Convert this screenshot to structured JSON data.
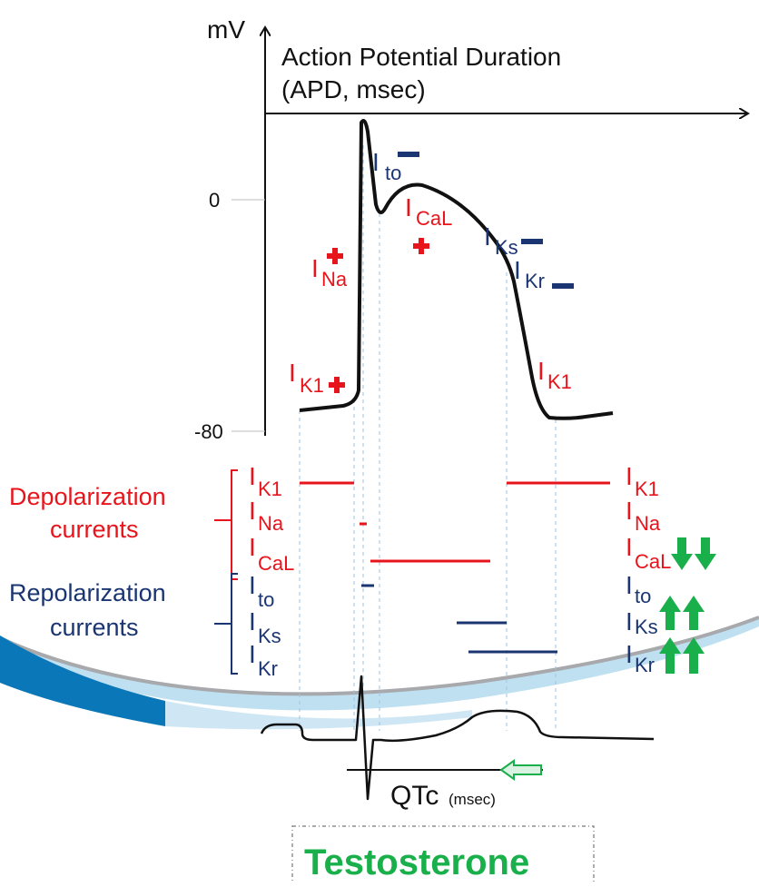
{
  "axes": {
    "y_unit": "mV",
    "x_title_line1": "Action Potential Duration",
    "x_title_line2": "(APD, msec)",
    "tick_zero": "0",
    "tick_minus80": "-80"
  },
  "ap_labels": {
    "i_letter": "I",
    "to": "to",
    "na": "Na",
    "cal": "CaL",
    "ks": "Ks",
    "kr": "Kr",
    "k1": "K1"
  },
  "groups": {
    "depolarization_line1": "Depolarization",
    "depolarization_line2": "currents",
    "repolarization_line1": "Repolarization",
    "repolarization_line2": "currents"
  },
  "ecg": {
    "qtc_label": "QTc",
    "qtc_unit": "(msec)"
  },
  "hormone": {
    "name": "Testosterone"
  },
  "colors": {
    "depolarization": "#e8141b",
    "repolarization": "#1a3572",
    "effect_arrow": "#19b04b",
    "band_dark": "#0a77b8",
    "band_light": "#bfe0f1"
  },
  "icons": {
    "increase": "green-up-arrow-icon",
    "decrease": "green-down-arrow-icon",
    "shorten": "green-left-arrow-icon"
  }
}
